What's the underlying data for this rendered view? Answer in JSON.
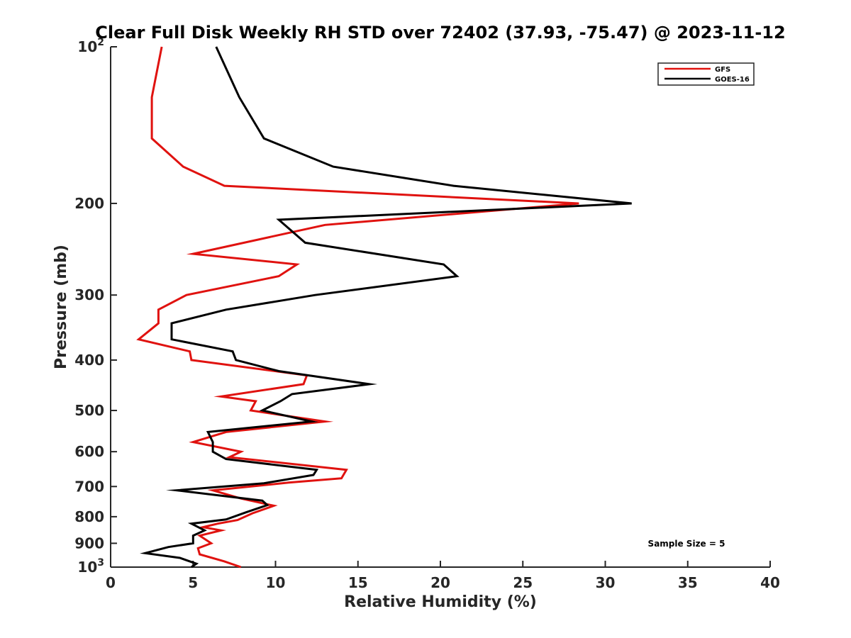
{
  "chart_data": {
    "type": "line",
    "title": "Clear Full Disk Weekly RH STD over 72402 (37.93, -75.47) @ 2023-11-12",
    "xlabel": "Relative Humidity (%)",
    "ylabel": "Pressure (mb)",
    "xlim": [
      0,
      40
    ],
    "ylim": [
      100,
      1000
    ],
    "yscale": "log",
    "yreversed": true,
    "x_ticks": [
      0,
      5,
      10,
      15,
      20,
      25,
      30,
      35,
      40
    ],
    "x_tick_labels": [
      "0",
      "5",
      "10",
      "15",
      "20",
      "25",
      "30",
      "35",
      "40"
    ],
    "y_ticks": [
      100,
      200,
      300,
      400,
      500,
      600,
      700,
      800,
      900,
      1000
    ],
    "y_tick_labels": [
      {
        "base": "10",
        "exp": "2"
      },
      {
        "text": "200"
      },
      {
        "text": "300"
      },
      {
        "text": "400"
      },
      {
        "text": "500"
      },
      {
        "text": "600"
      },
      {
        "text": "700"
      },
      {
        "text": "800"
      },
      {
        "text": "900"
      },
      {
        "base": "10",
        "exp": "3"
      }
    ],
    "legend_position": "top-right",
    "annotation": "Sample Size = 5",
    "series": [
      {
        "name": "GFS",
        "color": "#e0120f",
        "points": [
          [
            3.1,
            100
          ],
          [
            2.5,
            125
          ],
          [
            2.5,
            150
          ],
          [
            4.4,
            170
          ],
          [
            6.9,
            185
          ],
          [
            28.4,
            200
          ],
          [
            13.0,
            220
          ],
          [
            5.0,
            250
          ],
          [
            11.3,
            262
          ],
          [
            10.2,
            276
          ],
          [
            4.6,
            300
          ],
          [
            2.9,
            320
          ],
          [
            2.9,
            340
          ],
          [
            1.7,
            365
          ],
          [
            4.8,
            385
          ],
          [
            4.9,
            400
          ],
          [
            11.9,
            428
          ],
          [
            11.7,
            445
          ],
          [
            6.7,
            470
          ],
          [
            8.8,
            480
          ],
          [
            8.5,
            500
          ],
          [
            13.0,
            525
          ],
          [
            7.0,
            550
          ],
          [
            5.0,
            575
          ],
          [
            7.9,
            600
          ],
          [
            7.2,
            615
          ],
          [
            14.3,
            650
          ],
          [
            14.0,
            675
          ],
          [
            10.8,
            688
          ],
          [
            6.2,
            712
          ],
          [
            7.9,
            738
          ],
          [
            9.9,
            762
          ],
          [
            8.6,
            788
          ],
          [
            7.7,
            812
          ],
          [
            6.5,
            825
          ],
          [
            5.6,
            838
          ],
          [
            6.7,
            850
          ],
          [
            5.4,
            870
          ],
          [
            6.1,
            900
          ],
          [
            5.3,
            920
          ],
          [
            5.4,
            945
          ],
          [
            6.9,
            975
          ],
          [
            7.9,
            1000
          ]
        ]
      },
      {
        "name": "GOES-16",
        "color": "#000000",
        "points": [
          [
            6.4,
            100
          ],
          [
            7.8,
            125
          ],
          [
            9.3,
            150
          ],
          [
            13.5,
            170
          ],
          [
            20.8,
            185
          ],
          [
            31.6,
            200
          ],
          [
            10.2,
            215
          ],
          [
            11.8,
            238
          ],
          [
            20.2,
            262
          ],
          [
            21.0,
            276
          ],
          [
            12.4,
            300
          ],
          [
            7.0,
            320
          ],
          [
            3.7,
            340
          ],
          [
            3.7,
            365
          ],
          [
            7.4,
            385
          ],
          [
            7.6,
            400
          ],
          [
            10.2,
            420
          ],
          [
            15.7,
            445
          ],
          [
            11.0,
            465
          ],
          [
            10.3,
            480
          ],
          [
            9.2,
            500
          ],
          [
            12.2,
            525
          ],
          [
            5.9,
            550
          ],
          [
            6.2,
            575
          ],
          [
            6.2,
            600
          ],
          [
            7.0,
            620
          ],
          [
            12.5,
            650
          ],
          [
            12.3,
            665
          ],
          [
            9.3,
            690
          ],
          [
            4.0,
            712
          ],
          [
            9.2,
            745
          ],
          [
            9.5,
            760
          ],
          [
            8.2,
            785
          ],
          [
            7.0,
            810
          ],
          [
            4.9,
            825
          ],
          [
            5.7,
            850
          ],
          [
            5.0,
            870
          ],
          [
            5.0,
            900
          ],
          [
            3.5,
            915
          ],
          [
            2.1,
            940
          ],
          [
            4.2,
            960
          ],
          [
            5.2,
            985
          ],
          [
            4.9,
            1000
          ]
        ]
      }
    ]
  }
}
